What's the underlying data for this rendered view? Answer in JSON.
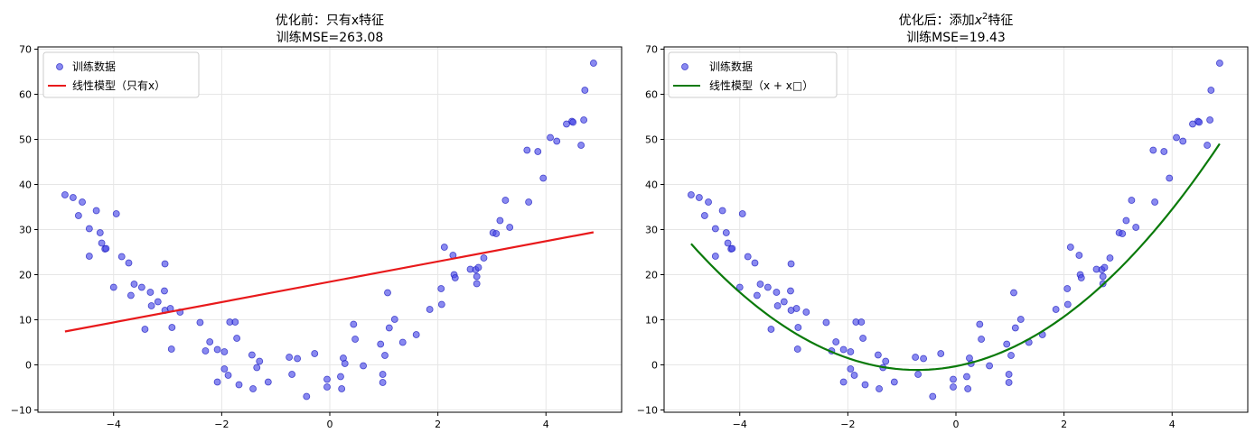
{
  "chart_data": [
    {
      "type": "scatter",
      "title": "优化前：只有x特征",
      "subtitle": "训练MSE=263.08",
      "xlabel": "",
      "ylabel": "",
      "xlim": [
        -5.4,
        5.4
      ],
      "ylim": [
        -10.5,
        70.5
      ],
      "xticks": [
        -4,
        -2,
        0,
        2,
        4
      ],
      "yticks": [
        -10,
        0,
        10,
        20,
        30,
        40,
        50,
        60,
        70
      ],
      "grid": true,
      "legend_position": "top-left",
      "series": [
        {
          "name": "训练数据",
          "kind": "scatter",
          "color": "#4a4ae8",
          "points": [
            [
              -4.9,
              37.7
            ],
            [
              -4.75,
              37.1
            ],
            [
              -4.65,
              33.1
            ],
            [
              -4.58,
              36.1
            ],
            [
              -4.45,
              30.2
            ],
            [
              -4.45,
              24.1
            ],
            [
              -4.32,
              34.2
            ],
            [
              -4.25,
              29.3
            ],
            [
              -4.22,
              27.0
            ],
            [
              -4.16,
              25.7
            ],
            [
              -4.14,
              25.8
            ],
            [
              -4.0,
              17.2
            ],
            [
              -3.95,
              33.5
            ],
            [
              -3.85,
              24.0
            ],
            [
              -3.72,
              22.6
            ],
            [
              -3.62,
              17.9
            ],
            [
              -3.68,
              15.4
            ],
            [
              -3.48,
              17.2
            ],
            [
              -3.42,
              7.9
            ],
            [
              -3.32,
              16.1
            ],
            [
              -3.3,
              13.1
            ],
            [
              -3.18,
              14.0
            ],
            [
              -3.06,
              16.4
            ],
            [
              -3.05,
              22.4
            ],
            [
              -3.05,
              12.1
            ],
            [
              -2.95,
              12.5
            ],
            [
              -2.92,
              8.3
            ],
            [
              -2.93,
              3.5
            ],
            [
              -2.77,
              11.7
            ],
            [
              -2.4,
              9.4
            ],
            [
              -2.3,
              3.1
            ],
            [
              -2.22,
              5.1
            ],
            [
              -2.08,
              3.4
            ],
            [
              -2.08,
              -3.8
            ],
            [
              -1.95,
              2.9
            ],
            [
              -1.95,
              -0.9
            ],
            [
              -1.88,
              -2.3
            ],
            [
              -1.85,
              9.5
            ],
            [
              -1.75,
              9.5
            ],
            [
              -1.72,
              5.9
            ],
            [
              -1.68,
              -4.4
            ],
            [
              -1.44,
              2.2
            ],
            [
              -1.42,
              -5.3
            ],
            [
              -1.35,
              -0.6
            ],
            [
              -1.3,
              0.8
            ],
            [
              -1.14,
              -3.8
            ],
            [
              -0.75,
              1.7
            ],
            [
              -0.7,
              -2.1
            ],
            [
              -0.6,
              1.4
            ],
            [
              -0.43,
              -7.0
            ],
            [
              -0.28,
              2.5
            ],
            [
              -0.05,
              -3.2
            ],
            [
              -0.05,
              -4.9
            ],
            [
              0.2,
              -2.6
            ],
            [
              0.22,
              -5.3
            ],
            [
              0.25,
              1.5
            ],
            [
              0.28,
              0.3
            ],
            [
              0.44,
              9.0
            ],
            [
              0.47,
              5.7
            ],
            [
              0.62,
              -0.2
            ],
            [
              0.94,
              4.6
            ],
            [
              0.98,
              -2.1
            ],
            [
              0.98,
              -3.9
            ],
            [
              1.02,
              2.1
            ],
            [
              1.07,
              16.0
            ],
            [
              1.1,
              8.2
            ],
            [
              1.2,
              10.1
            ],
            [
              1.35,
              5.0
            ],
            [
              1.6,
              6.7
            ],
            [
              1.85,
              12.3
            ],
            [
              2.07,
              13.4
            ],
            [
              2.06,
              16.9
            ],
            [
              2.12,
              26.1
            ],
            [
              2.28,
              24.3
            ],
            [
              2.3,
              20.0
            ],
            [
              2.32,
              19.3
            ],
            [
              2.6,
              21.2
            ],
            [
              2.7,
              21.1
            ],
            [
              2.72,
              18.0
            ],
            [
              2.72,
              19.6
            ],
            [
              2.75,
              21.6
            ],
            [
              2.85,
              23.7
            ],
            [
              3.02,
              29.3
            ],
            [
              3.08,
              29.1
            ],
            [
              3.15,
              32.0
            ],
            [
              3.25,
              36.5
            ],
            [
              3.33,
              30.5
            ],
            [
              3.65,
              47.6
            ],
            [
              3.68,
              36.1
            ],
            [
              3.85,
              47.3
            ],
            [
              3.95,
              41.4
            ],
            [
              4.08,
              50.4
            ],
            [
              4.2,
              49.6
            ],
            [
              4.38,
              53.4
            ],
            [
              4.48,
              54.0
            ],
            [
              4.5,
              53.8
            ],
            [
              4.65,
              48.7
            ],
            [
              4.7,
              54.3
            ],
            [
              4.72,
              60.9
            ],
            [
              4.88,
              66.9
            ]
          ]
        },
        {
          "name": "线性模型（只有x）",
          "kind": "line",
          "color": "#e8191b",
          "points": [
            [
              -4.9,
              7.4
            ],
            [
              4.88,
              29.4
            ]
          ]
        }
      ]
    },
    {
      "type": "scatter",
      "title": "优化后：添加x²特征",
      "title_prefix": "优化后：添加",
      "title_var": "x",
      "title_sup": "2",
      "title_suffix": "特征",
      "subtitle": "训练MSE=19.43",
      "xlabel": "",
      "ylabel": "",
      "xlim": [
        -5.4,
        5.4
      ],
      "ylim": [
        -10.5,
        70.5
      ],
      "xticks": [
        -4,
        -2,
        0,
        2,
        4
      ],
      "yticks": [
        -10,
        0,
        10,
        20,
        30,
        40,
        50,
        60,
        70
      ],
      "grid": true,
      "legend_position": "top-left",
      "series": [
        {
          "name": "训练数据",
          "kind": "scatter",
          "color": "#4a4ae8",
          "same_points_as_left": true
        },
        {
          "name": "线性模型（x + x□）",
          "kind": "curve",
          "color": "#0a7a0a",
          "quadratic": {
            "a": 1.6,
            "b": 2.3,
            "c": -0.3
          },
          "x_range": [
            -4.9,
            4.88
          ]
        }
      ]
    }
  ]
}
